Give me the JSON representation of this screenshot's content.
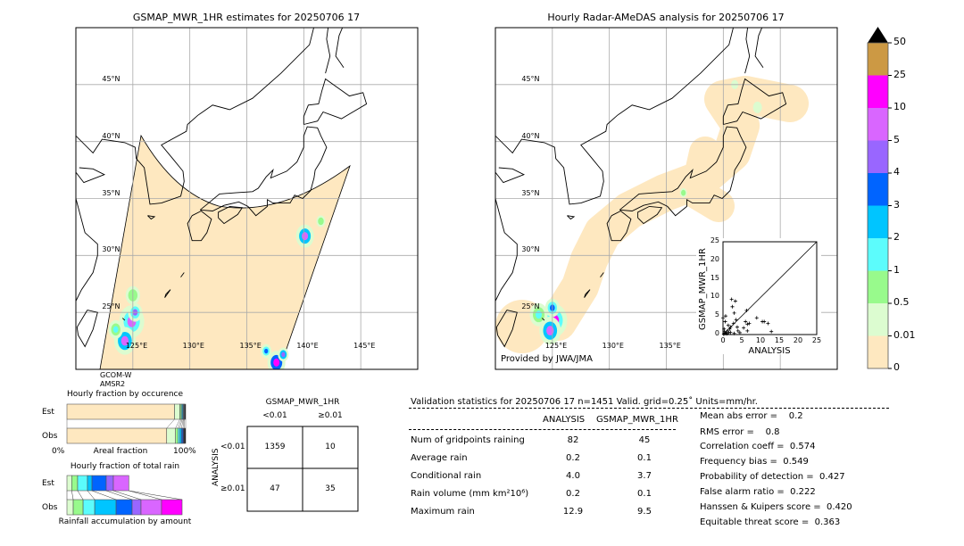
{
  "left_map": {
    "title": "GSMAP_MWR_1HR estimates for 20250706 17",
    "satellite": "GCOM-W",
    "sensor": "AMSR2"
  },
  "right_map": {
    "title": "Hourly Radar-AMeDAS analysis for 20250706 17",
    "credit": "Provided by JWA/JMA"
  },
  "lat_labels": [
    "45°N",
    "40°N",
    "35°N",
    "30°N",
    "25°N"
  ],
  "lon_labels_left": [
    "125°E",
    "130°E",
    "135°E",
    "140°E",
    "145°E"
  ],
  "lon_labels_right": [
    "125°E",
    "130°E",
    "135°E"
  ],
  "colorbar": {
    "labels": [
      "0",
      "0.01",
      "0.5",
      "1",
      "2",
      "3",
      "4",
      "5",
      "10",
      "25",
      "50"
    ],
    "colors": [
      "#fee8c0",
      "#dcfcd0",
      "#98fa8c",
      "#5cfcfc",
      "#00c5ff",
      "#0064ff",
      "#9966ff",
      "#d966ff",
      "#ff00ff",
      "#cc9944"
    ],
    "extend": "max"
  },
  "occurrence": {
    "title": "Hourly fraction by occurence",
    "rows": [
      "Est",
      "Obs"
    ],
    "xlabel": "Areal fraction",
    "x_min": "0%",
    "x_max": "100%",
    "est_fractions": [
      0.906,
      0.045,
      0.012,
      0.008,
      0.008,
      0.006,
      0.006,
      0.009
    ],
    "obs_fractions": [
      0.84,
      0.075,
      0.02,
      0.015,
      0.015,
      0.012,
      0.01,
      0.013
    ]
  },
  "total_rain": {
    "title": "Hourly fraction of total rain",
    "rows": [
      "Est",
      "Obs"
    ],
    "xlabel": "Rainfall accumulation by amount",
    "colors": [
      "#dcfcd0",
      "#98fa8c",
      "#5cfcfc",
      "#00c5ff",
      "#0064ff",
      "#9966ff",
      "#d966ff",
      "#ff00ff"
    ],
    "est_fractions": [
      0.04,
      0.05,
      0.083,
      0.038,
      0.12,
      0.06,
      0.13,
      0
    ],
    "obs_fractions": [
      0.053,
      0.083,
      0.098,
      0.18,
      0.135,
      0.075,
      0.173,
      0.173
    ]
  },
  "contingency": {
    "title": "GSMAP_MWR_1HR",
    "col_labels": [
      "<0.01",
      "≥0.01"
    ],
    "row_axis": "ANALYSIS",
    "row_labels": [
      "<0.01",
      "≥0.01"
    ],
    "cells": [
      [
        "1359",
        "10"
      ],
      [
        "47",
        "35"
      ]
    ]
  },
  "stats": {
    "header": "Validation statistics for 20250706 17  n=1451 Valid. grid=0.25˚ Units=mm/hr.",
    "col_headers": [
      "ANALYSIS",
      "GSMAP_MWR_1HR"
    ],
    "rows": [
      {
        "label": "Num of gridpoints raining",
        "analysis": "82",
        "gsmap": "45"
      },
      {
        "label": "Average rain",
        "analysis": "0.2",
        "gsmap": "0.1"
      },
      {
        "label": "Conditional rain",
        "analysis": "4.0",
        "gsmap": "3.7"
      },
      {
        "label": "Rain volume (mm km²10⁶)",
        "analysis": "0.2",
        "gsmap": "0.1"
      },
      {
        "label": "Maximum rain",
        "analysis": "12.9",
        "gsmap": "9.5"
      }
    ],
    "scores": [
      "Mean abs error =    0.2",
      "RMS error =    0.8",
      "Correlation coeff =  0.574",
      "Frequency bias =  0.549",
      "Probability of detection =  0.427",
      "False alarm ratio =  0.222",
      "Hanssen & Kuipers score =  0.420",
      "Equitable threat score =  0.363"
    ]
  },
  "chart_data": {
    "type": "scatter",
    "xlabel": "ANALYSIS",
    "ylabel": "GSMAP_MWR_1HR",
    "xlim": [
      0,
      25
    ],
    "ylim": [
      0,
      25
    ],
    "ticks": [
      "0",
      "5",
      "10",
      "15",
      "20",
      "25"
    ],
    "points": [
      [
        0.2,
        0.1
      ],
      [
        0.5,
        0.3
      ],
      [
        0.8,
        0.5
      ],
      [
        1,
        0.2
      ],
      [
        1.2,
        1
      ],
      [
        1.5,
        0.5
      ],
      [
        0.3,
        1.5
      ],
      [
        0.6,
        3.5
      ],
      [
        0.7,
        5
      ],
      [
        0,
        4.5
      ],
      [
        2,
        2
      ],
      [
        2.3,
        9.5
      ],
      [
        2.5,
        7.5
      ],
      [
        3.3,
        9
      ],
      [
        3,
        5.8
      ],
      [
        3.5,
        4
      ],
      [
        3.8,
        2
      ],
      [
        4,
        1
      ],
      [
        2.8,
        3
      ],
      [
        1.8,
        1.5
      ],
      [
        5.5,
        1.8
      ],
      [
        6,
        3.5
      ],
      [
        6.3,
        6.5
      ],
      [
        6.5,
        1
      ],
      [
        7,
        3
      ],
      [
        6.5,
        2.8
      ],
      [
        9,
        4.5
      ],
      [
        10.5,
        3.5
      ],
      [
        11,
        3.5
      ],
      [
        12,
        3
      ],
      [
        12.9,
        0.8
      ],
      [
        4.5,
        0.5
      ],
      [
        3,
        0.3
      ],
      [
        2,
        0.6
      ],
      [
        1.4,
        2.5
      ],
      [
        0.4,
        0.8
      ]
    ]
  }
}
